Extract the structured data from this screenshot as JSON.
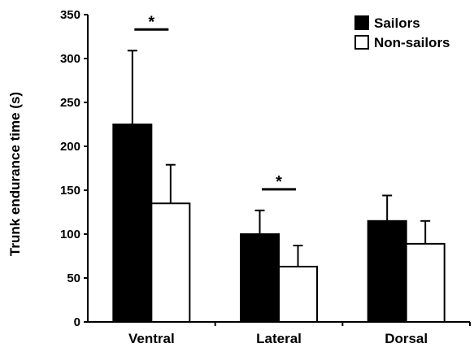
{
  "chart_data": {
    "type": "bar",
    "title": "",
    "xlabel": "",
    "ylabel": "Trunk endurance time (s)",
    "ylim": [
      0,
      350
    ],
    "yticks": [
      0,
      50,
      100,
      150,
      200,
      250,
      300,
      350
    ],
    "categories": [
      "Ventral",
      "Lateral",
      "Dorsal"
    ],
    "series": [
      {
        "name": "Sailors",
        "color": "#000000",
        "values": [
          225,
          100,
          115
        ],
        "errors": [
          84,
          27,
          29
        ]
      },
      {
        "name": "Non-sailors",
        "color": "#ffffff",
        "values": [
          135,
          63,
          89
        ],
        "errors": [
          44,
          24,
          26
        ]
      }
    ],
    "significance": [
      {
        "category": "Ventral",
        "label": "*"
      },
      {
        "category": "Lateral",
        "label": "*"
      }
    ],
    "legend": "top-right",
    "grid": false
  }
}
